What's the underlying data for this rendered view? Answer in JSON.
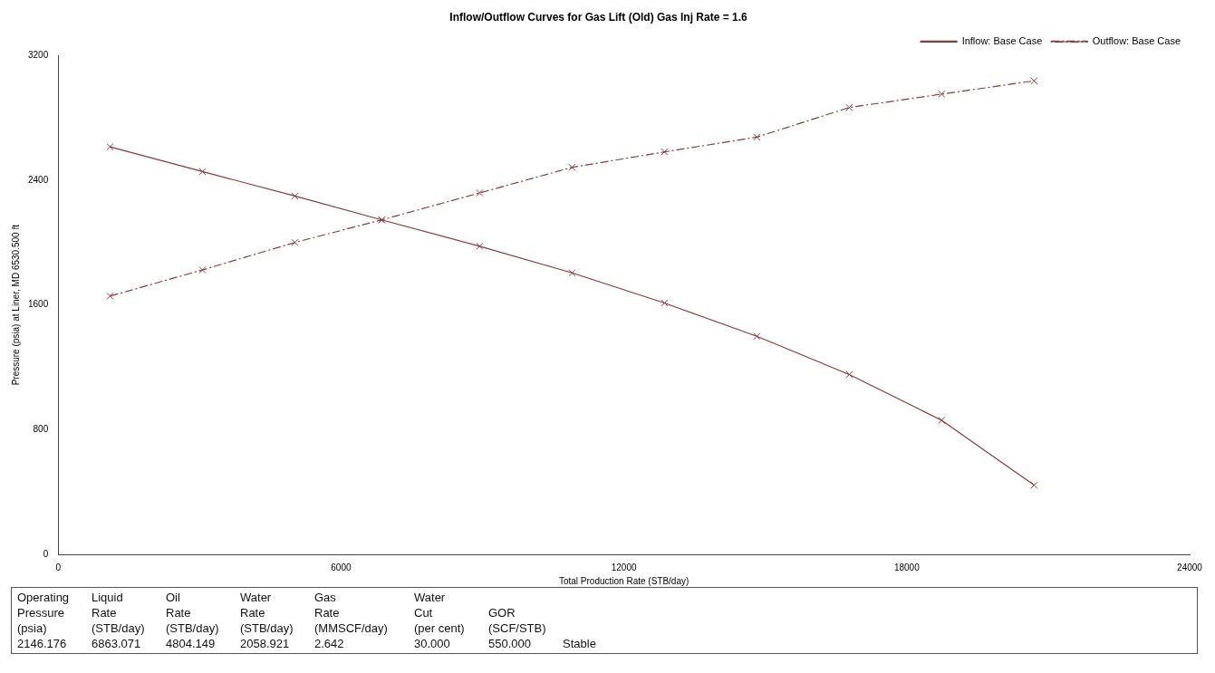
{
  "chart_data": {
    "type": "line",
    "title": "Inflow/Outflow Curves for Gas Lift (Old) Gas Inj Rate = 1.6",
    "xlabel": "Total Production Rate (STB/day)",
    "ylabel": "Pressure (psia) at Liner, MD 6530.500 ft",
    "series": [
      {
        "name": "Inflow: Base Case",
        "color": "#8b3a3a",
        "line_style": "solid",
        "x": [
          1100,
          3060,
          5020,
          6863,
          8940,
          10900,
          12860,
          14820,
          16780,
          18740,
          20700
        ],
        "values": [
          2615,
          2456,
          2299,
          2146,
          1977,
          1806,
          1613,
          1399,
          1154,
          860,
          444
        ]
      },
      {
        "name": "Outflow: Base Case",
        "color": "#8b3a3a",
        "line_style": "dashed",
        "x": [
          1100,
          3060,
          5020,
          6863,
          8940,
          10900,
          12860,
          14820,
          16780,
          18740,
          20700
        ],
        "values": [
          1657,
          1825,
          2001,
          2146,
          2319,
          2483,
          2582,
          2677,
          2867,
          2953,
          3038
        ]
      }
    ],
    "marker": "cross",
    "xlim": [
      0,
      24000
    ],
    "xticks": [
      0,
      6000,
      12000,
      18000,
      24000
    ],
    "ylim": [
      0,
      3200
    ],
    "yticks": [
      0,
      800,
      1600,
      2400,
      3200
    ],
    "grid": false,
    "legend": "top right",
    "annotations": [
      "Operating\nPressure\n(psia)\n2146.176",
      "Liquid\nRate\n(STB/day)\n6863.071",
      "Oil\nRate\n(STB/day)\n4804.149",
      "Water\nRate\n(STB/day)\n2058.921",
      "Gas\nRate\n(MMSCF/day)\n2.642",
      "Water\nCut\n(per cent)\n30.000",
      "\nGOR\n(SCF/STB)\n550.000",
      "\n\n\nStable"
    ]
  }
}
